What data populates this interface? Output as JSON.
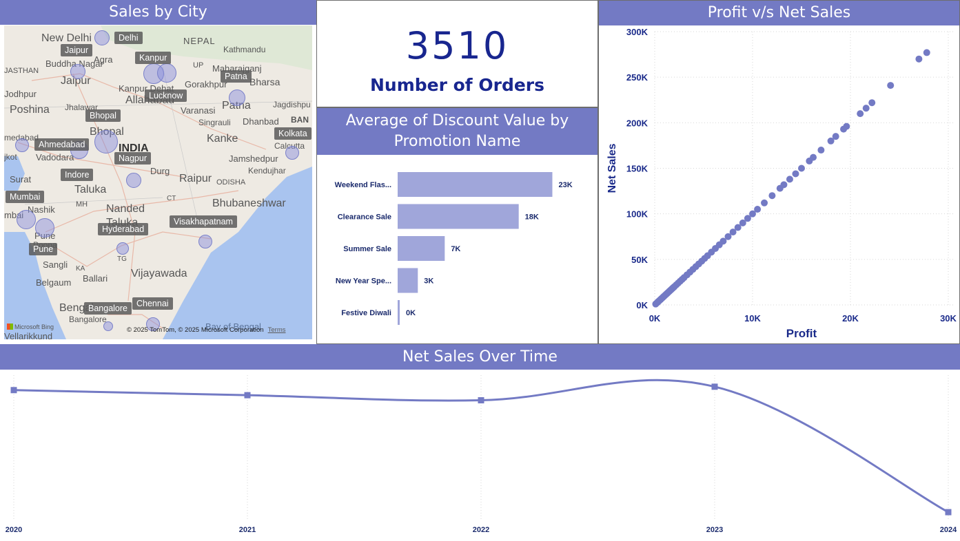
{
  "colors": {
    "accent": "#737ac4",
    "dark_text": "#18268f",
    "bar": "#a0a6da",
    "point": "#737ac4"
  },
  "map_card": {
    "title": "Sales by City",
    "credit": "© 2025 TomTom, © 2025 Microsoft Corporation",
    "terms": "Terms",
    "logo": "Microsoft Bing",
    "place_labels": [
      "New Delhi",
      "NEPAL",
      "Kathmandu",
      "Buddha Nagar",
      "Agra",
      "Maharajganj",
      "JASTHAN",
      "Jaipur",
      "UP",
      "Gorakhpur",
      "Bharsa",
      "Jodhpur",
      "Kanpur Dehat",
      "Allahabad",
      "Jhalawar",
      "Varanasi",
      "Patna",
      "Jagdishpu",
      "Poshina",
      "Bhopal",
      "Singrauli",
      "Dhanbad",
      "BAN",
      "medabad",
      "INDIA",
      "Kanke",
      "Calcutta",
      "Vadodara",
      "Jamshedpur",
      "Surat",
      "Taluka",
      "Durg",
      "Raipur",
      "ODISHA",
      "Kendujhar",
      "Nashik",
      "MH",
      "Nanded",
      "Bhubaneshwar",
      "Taluka",
      "CT",
      "Pune",
      "Poona",
      "Sangli",
      "KA",
      "TG",
      "Ballari",
      "Vijayawada",
      "Belgaum",
      "Bengal",
      "Bangalore",
      "Bay of Bengal",
      "Vellarikkund",
      "mbai",
      "jkot"
    ],
    "cities": [
      "Delhi",
      "Jaipur",
      "Kanpur",
      "Lucknow",
      "Patna",
      "Bhopal",
      "Ahmedabad",
      "Kolkata",
      "Nagpur",
      "Indore",
      "Mumbai",
      "Hyderabad",
      "Visakhapatnam",
      "Pune",
      "Bangalore",
      "Chennai"
    ]
  },
  "kpi_card": {
    "value": "3510",
    "label": "Number of Orders"
  },
  "bar_card": {
    "title": "Average of Discount Value by Promotion Name"
  },
  "scatter_card": {
    "title": "Profit v/s Net Sales"
  },
  "line_card": {
    "title": "Net Sales Over Time"
  },
  "chart_data": [
    {
      "type": "bar",
      "orientation": "horizontal",
      "title": "Average of Discount Value by Promotion Name",
      "categories": [
        "Weekend Flas...",
        "Clearance Sale",
        "Summer Sale",
        "New Year Spe...",
        "Festive Diwali"
      ],
      "values": [
        23000,
        18000,
        7000,
        3000,
        0
      ],
      "data_labels": [
        "23K",
        "18K",
        "7K",
        "3K",
        "0K"
      ],
      "xlim": [
        0,
        25000
      ],
      "grid": false
    },
    {
      "type": "scatter",
      "title": "Profit v/s Net Sales",
      "xlabel": "Profit",
      "ylabel": "Net Sales",
      "xlim": [
        0,
        30000
      ],
      "ylim": [
        0,
        300000
      ],
      "x_ticks": [
        "0K",
        "10K",
        "20K",
        "30K"
      ],
      "y_ticks": [
        "0K",
        "50K",
        "100K",
        "150K",
        "200K",
        "250K",
        "300K"
      ],
      "grid": true,
      "points": [
        [
          100,
          1000
        ],
        [
          200,
          2000
        ],
        [
          300,
          3000
        ],
        [
          400,
          4000
        ],
        [
          500,
          5000
        ],
        [
          600,
          6000
        ],
        [
          700,
          7000
        ],
        [
          800,
          8000
        ],
        [
          900,
          9000
        ],
        [
          1000,
          10000
        ],
        [
          1100,
          11000
        ],
        [
          1200,
          12000
        ],
        [
          1300,
          13000
        ],
        [
          1400,
          14000
        ],
        [
          1500,
          15000
        ],
        [
          1600,
          16000
        ],
        [
          1700,
          17000
        ],
        [
          1800,
          18000
        ],
        [
          1900,
          19000
        ],
        [
          2000,
          20000
        ],
        [
          2200,
          22000
        ],
        [
          2400,
          24000
        ],
        [
          2600,
          26000
        ],
        [
          2800,
          28000
        ],
        [
          3000,
          30000
        ],
        [
          3300,
          33000
        ],
        [
          3600,
          36000
        ],
        [
          3900,
          39000
        ],
        [
          4200,
          42000
        ],
        [
          4500,
          45000
        ],
        [
          4800,
          48000
        ],
        [
          5100,
          51000
        ],
        [
          5400,
          54000
        ],
        [
          5800,
          58000
        ],
        [
          6200,
          62000
        ],
        [
          6600,
          66000
        ],
        [
          7000,
          70000
        ],
        [
          7500,
          75000
        ],
        [
          8000,
          80000
        ],
        [
          8500,
          85000
        ],
        [
          9000,
          90000
        ],
        [
          9500,
          95000
        ],
        [
          10000,
          100000
        ],
        [
          10500,
          105000
        ],
        [
          11200,
          112000
        ],
        [
          12000,
          120000
        ],
        [
          12800,
          128000
        ],
        [
          13200,
          132000
        ],
        [
          13800,
          138000
        ],
        [
          14400,
          144000
        ],
        [
          15000,
          150000
        ],
        [
          15800,
          158000
        ],
        [
          16200,
          162000
        ],
        [
          17000,
          170000
        ],
        [
          18000,
          180000
        ],
        [
          18500,
          185000
        ],
        [
          19300,
          193000
        ],
        [
          19600,
          196000
        ],
        [
          21000,
          210000
        ],
        [
          21600,
          216000
        ],
        [
          22200,
          222000
        ],
        [
          24100,
          241000
        ],
        [
          27000,
          270000
        ],
        [
          27800,
          277000
        ]
      ]
    },
    {
      "type": "line",
      "title": "Net Sales Over Time",
      "x": [
        "2020",
        "2021",
        "2022",
        "2023",
        "2024"
      ],
      "series": [
        {
          "values": [
            1340000,
            1310000,
            1280000,
            1360000,
            620000
          ]
        }
      ],
      "ylim": [
        600000,
        1400000
      ],
      "grid": true
    }
  ]
}
